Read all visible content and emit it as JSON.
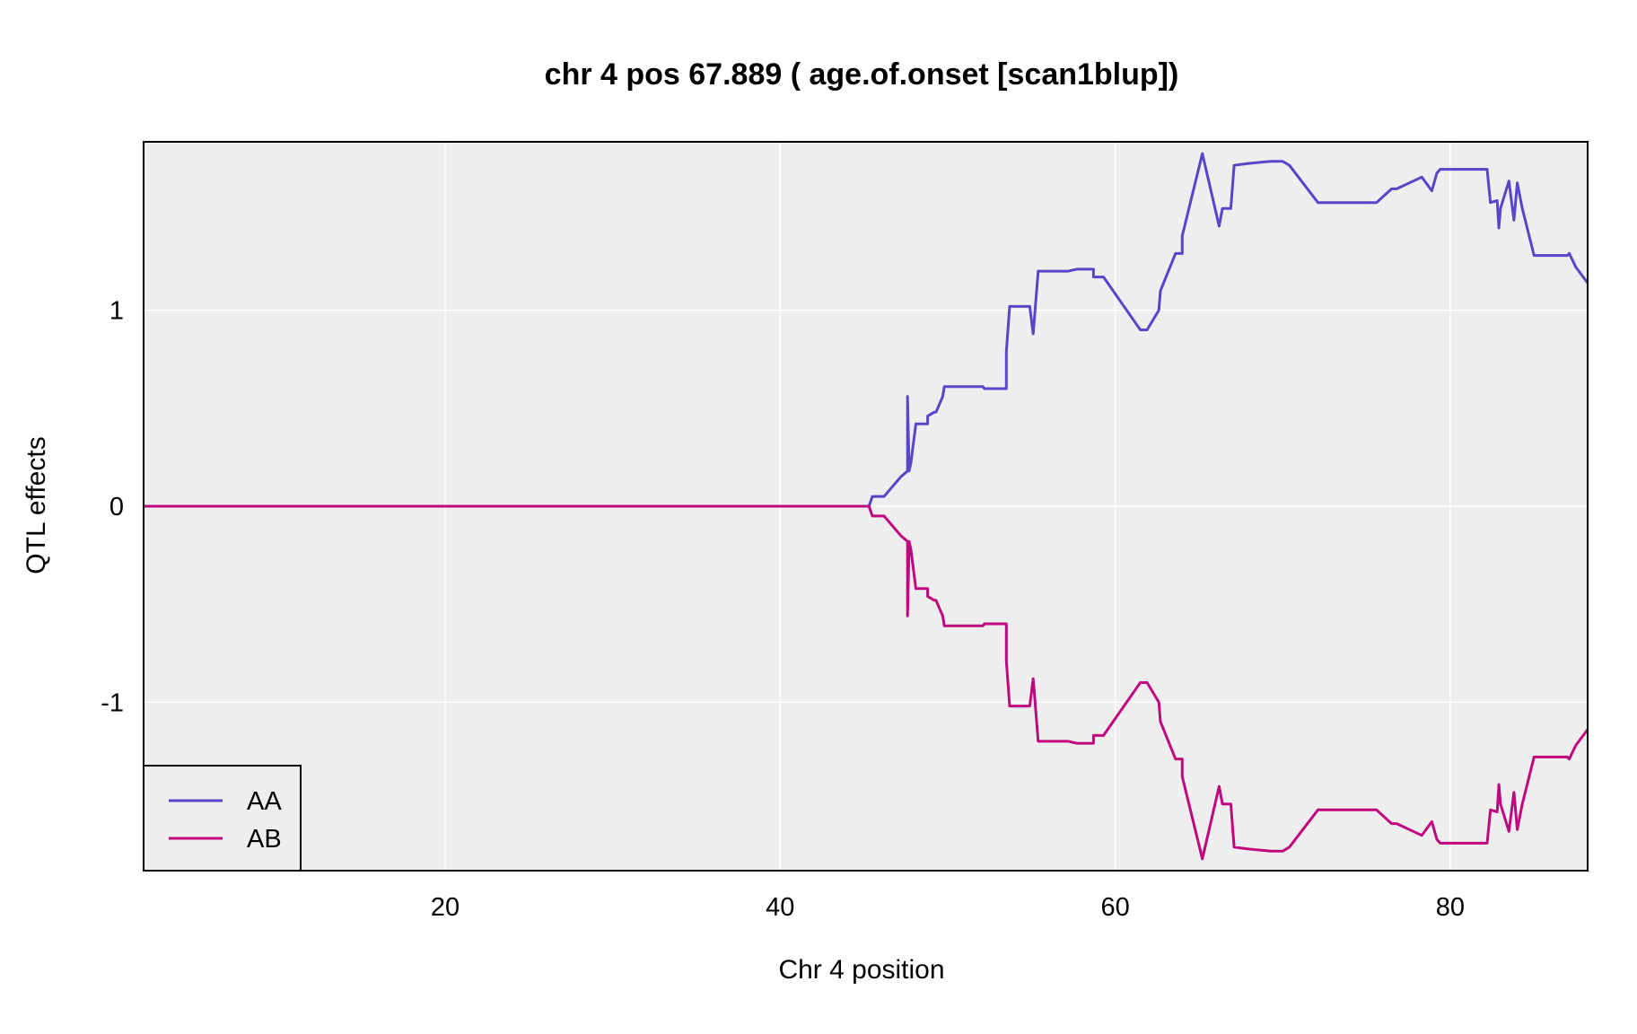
{
  "chart_data": {
    "type": "line",
    "title": "chr 4 pos 67.889 ( age.of.onset  [scan1blup])",
    "xlabel": "Chr 4 position",
    "ylabel": "QTL effects",
    "xlim": [
      2.0,
      88.2
    ],
    "ylim": [
      -1.86,
      1.86
    ],
    "x_ticks": [
      20,
      40,
      60,
      80
    ],
    "y_ticks": [
      -1,
      0,
      1
    ],
    "x_tick_labels": [
      "20",
      "40",
      "60",
      "80"
    ],
    "y_tick_labels": [
      "-1",
      "0",
      "1"
    ],
    "grid": true,
    "legend_position": "bottom-left",
    "colors": {
      "AA": "#5746c9",
      "AB": "#c0077f",
      "panel": "#eeeeee",
      "grid": "#ffffff"
    },
    "series": [
      {
        "name": "AA",
        "x": [
          2.0,
          45.3,
          45.5,
          45.5,
          46.2,
          47.2,
          47.6,
          47.6,
          47.7,
          47.8,
          48.1,
          48.8,
          48.8,
          49.2,
          49.3,
          49.7,
          49.8,
          50.1,
          52.1,
          52.2,
          53.5,
          53.5,
          53.7,
          54.9,
          55.1,
          55.4,
          57.2,
          57.7,
          58.7,
          58.7,
          59.3,
          61.5,
          61.8,
          61.9,
          62.6,
          62.7,
          63.6,
          64.0,
          64.0,
          65.2,
          66.2,
          66.4,
          66.9,
          67.1,
          68.0,
          69.3,
          70.0,
          70.4,
          72.1,
          75.6,
          76.5,
          76.8,
          78.3,
          78.9,
          79.2,
          79.4,
          82.2,
          82.4,
          82.8,
          82.9,
          83.0,
          83.5,
          83.8,
          84.0,
          84.3,
          85.0,
          87.0,
          87.1,
          87.5,
          88.2
        ],
        "y": [
          0.0,
          0.0,
          0.05,
          0.05,
          0.05,
          0.15,
          0.18,
          0.56,
          0.18,
          0.22,
          0.42,
          0.42,
          0.46,
          0.48,
          0.48,
          0.56,
          0.61,
          0.61,
          0.61,
          0.6,
          0.6,
          0.79,
          1.02,
          1.02,
          0.88,
          1.2,
          1.2,
          1.21,
          1.21,
          1.17,
          1.17,
          0.9,
          0.9,
          0.9,
          1.0,
          1.1,
          1.29,
          1.29,
          1.38,
          1.8,
          1.43,
          1.52,
          1.52,
          1.74,
          1.75,
          1.76,
          1.76,
          1.74,
          1.55,
          1.55,
          1.62,
          1.62,
          1.68,
          1.61,
          1.7,
          1.72,
          1.72,
          1.55,
          1.56,
          1.42,
          1.52,
          1.66,
          1.46,
          1.65,
          1.52,
          1.28,
          1.28,
          1.29,
          1.22,
          1.14
        ]
      },
      {
        "name": "AB",
        "x": [
          2.0,
          45.3,
          45.5,
          45.5,
          46.2,
          47.2,
          47.6,
          47.6,
          47.7,
          47.8,
          48.1,
          48.8,
          48.8,
          49.2,
          49.3,
          49.7,
          49.8,
          50.1,
          52.1,
          52.2,
          53.5,
          53.5,
          53.7,
          54.9,
          55.1,
          55.4,
          57.2,
          57.7,
          58.7,
          58.7,
          59.3,
          61.5,
          61.8,
          61.9,
          62.6,
          62.7,
          63.6,
          64.0,
          64.0,
          65.2,
          66.2,
          66.4,
          66.9,
          67.1,
          68.0,
          69.3,
          70.0,
          70.4,
          72.1,
          75.6,
          76.5,
          76.8,
          78.3,
          78.9,
          79.2,
          79.4,
          82.2,
          82.4,
          82.8,
          82.9,
          83.0,
          83.5,
          83.8,
          84.0,
          84.3,
          85.0,
          87.0,
          87.1,
          87.5,
          88.2
        ],
        "y": [
          0.0,
          0.0,
          -0.05,
          -0.05,
          -0.05,
          -0.15,
          -0.18,
          -0.56,
          -0.18,
          -0.22,
          -0.42,
          -0.42,
          -0.46,
          -0.48,
          -0.48,
          -0.56,
          -0.61,
          -0.61,
          -0.61,
          -0.6,
          -0.6,
          -0.79,
          -1.02,
          -1.02,
          -0.88,
          -1.2,
          -1.2,
          -1.21,
          -1.21,
          -1.17,
          -1.17,
          -0.9,
          -0.9,
          -0.9,
          -1.0,
          -1.1,
          -1.29,
          -1.29,
          -1.38,
          -1.8,
          -1.43,
          -1.52,
          -1.52,
          -1.74,
          -1.75,
          -1.76,
          -1.76,
          -1.74,
          -1.55,
          -1.55,
          -1.62,
          -1.62,
          -1.68,
          -1.61,
          -1.7,
          -1.72,
          -1.72,
          -1.55,
          -1.56,
          -1.42,
          -1.52,
          -1.66,
          -1.46,
          -1.65,
          -1.52,
          -1.28,
          -1.28,
          -1.29,
          -1.22,
          -1.14
        ]
      }
    ]
  }
}
